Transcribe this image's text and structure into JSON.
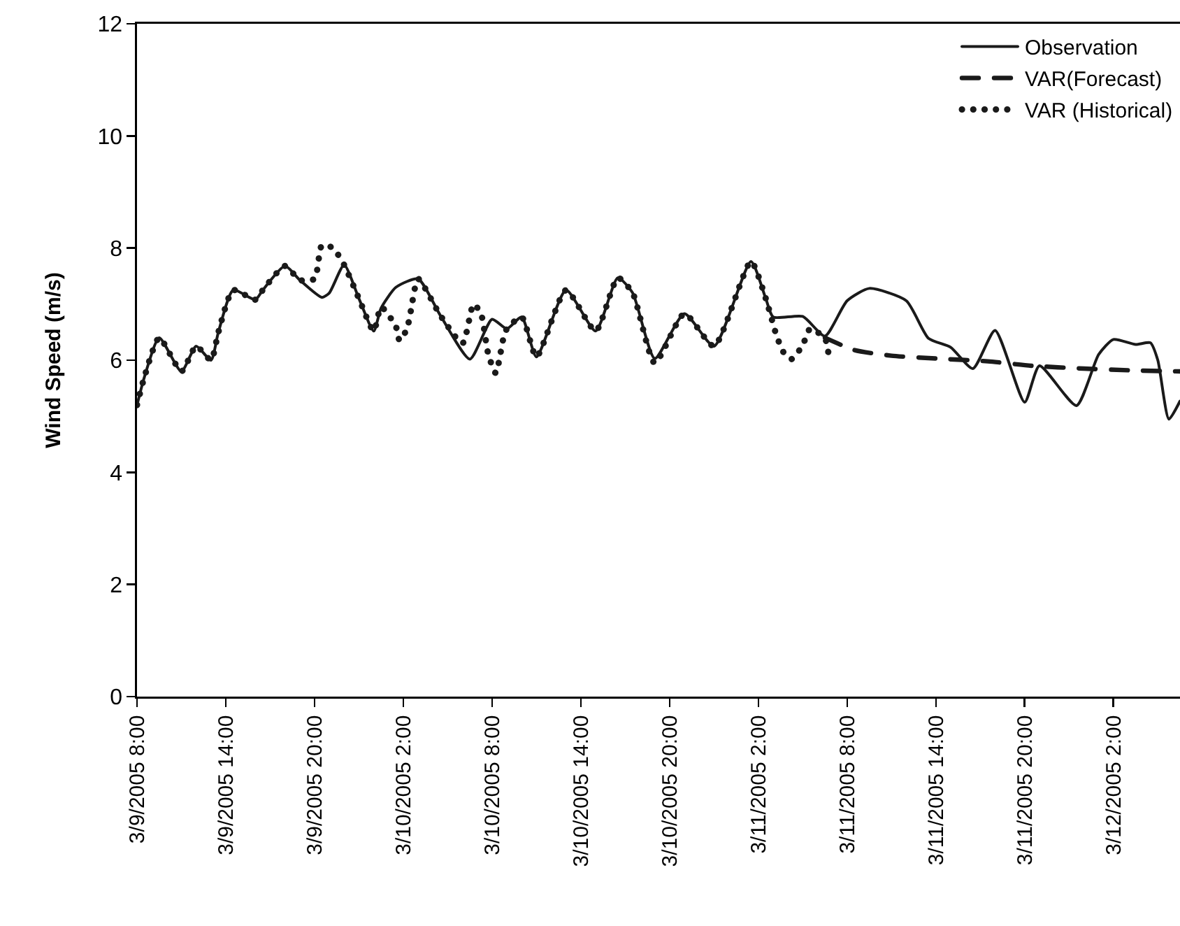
{
  "chart_data": {
    "type": "line",
    "ylabel": "Wind Speed (m/s)",
    "legend": "top right",
    "xlim": [
      "2005-03-09T08:00",
      "2005-03-12T06:30"
    ],
    "xticks": [
      {
        "value": "2005-03-09T08:00",
        "label": "3/9/2005 8:00"
      },
      {
        "value": "2005-03-09T14:00",
        "label": "3/9/2005 14:00"
      },
      {
        "value": "2005-03-09T20:00",
        "label": "3/9/2005 20:00"
      },
      {
        "value": "2005-03-10T02:00",
        "label": "3/10/2005 2:00"
      },
      {
        "value": "2005-03-10T08:00",
        "label": "3/10/2005 8:00"
      },
      {
        "value": "2005-03-10T14:00",
        "label": "3/10/2005 14:00"
      },
      {
        "value": "2005-03-10T20:00",
        "label": "3/10/2005 20:00"
      },
      {
        "value": "2005-03-11T02:00",
        "label": "3/11/2005 2:00"
      },
      {
        "value": "2005-03-11T08:00",
        "label": "3/11/2005 8:00"
      },
      {
        "value": "2005-03-11T14:00",
        "label": "3/11/2005 14:00"
      },
      {
        "value": "2005-03-11T20:00",
        "label": "3/11/2005 20:00"
      },
      {
        "value": "2005-03-12T02:00",
        "label": "3/12/2005 2:00"
      }
    ],
    "ylim": [
      0,
      12
    ],
    "yticks": [
      0,
      2,
      4,
      6,
      8,
      10,
      12
    ],
    "series": [
      {
        "name": "Observation",
        "color": "#1a1a1a",
        "line_style": "solid",
        "x": [
          "2005-03-09T08:00",
          "2005-03-09T08:30",
          "2005-03-09T09:30",
          "2005-03-09T11:00",
          "2005-03-09T12:00",
          "2005-03-09T13:00",
          "2005-03-09T13:30",
          "2005-03-09T14:30",
          "2005-03-09T16:00",
          "2005-03-09T16:30",
          "2005-03-09T18:00",
          "2005-03-09T19:00",
          "2005-03-09T20:30",
          "2005-03-09T21:00",
          "2005-03-09T22:00",
          "2005-03-09T23:00",
          "2005-03-10T00:00",
          "2005-03-10T00:30",
          "2005-03-10T01:30",
          "2005-03-10T03:00",
          "2005-03-10T04:30",
          "2005-03-10T06:30",
          "2005-03-10T08:00",
          "2005-03-10T09:00",
          "2005-03-10T10:00",
          "2005-03-10T11:00",
          "2005-03-10T13:00",
          "2005-03-10T15:00",
          "2005-03-10T16:30",
          "2005-03-10T17:30",
          "2005-03-10T19:00",
          "2005-03-10T21:00",
          "2005-03-10T23:00",
          "2005-03-11T01:30",
          "2005-03-11T02:30",
          "2005-03-11T03:00",
          "2005-03-11T05:00",
          "2005-03-11T06:30",
          "2005-03-11T08:00",
          "2005-03-11T09:30",
          "2005-03-11T12:00",
          "2005-03-11T13:30",
          "2005-03-11T15:00",
          "2005-03-11T16:30",
          "2005-03-11T18:00",
          "2005-03-11T20:00",
          "2005-03-11T21:00",
          "2005-03-11T23:30",
          "2005-03-12T01:00",
          "2005-03-12T02:00",
          "2005-03-12T03:30",
          "2005-03-12T04:30",
          "2005-03-12T05:00",
          "2005-03-12T05:45",
          "2005-03-12T06:30"
        ],
        "values": [
          5.2,
          5.7,
          6.4,
          5.8,
          6.25,
          6.0,
          6.5,
          7.25,
          7.08,
          7.25,
          7.68,
          7.43,
          7.12,
          7.2,
          7.7,
          7.1,
          6.52,
          6.93,
          7.3,
          7.45,
          6.8,
          6.02,
          6.73,
          6.56,
          6.77,
          6.06,
          7.25,
          6.52,
          7.47,
          7.2,
          6.03,
          6.83,
          6.25,
          7.76,
          7.1,
          6.77,
          6.78,
          6.43,
          7.06,
          7.28,
          7.06,
          6.39,
          6.23,
          5.85,
          6.53,
          5.25,
          5.9,
          5.19,
          6.1,
          6.37,
          6.28,
          6.31,
          6.0,
          4.95,
          5.27
        ]
      },
      {
        "name": "VAR(Forecast)",
        "color": "#1a1a1a",
        "line_style": "dashed",
        "x": [
          "2005-03-11T06:30",
          "2005-03-11T08:30",
          "2005-03-11T11:00",
          "2005-03-11T14:00",
          "2005-03-11T17:30",
          "2005-03-11T20:30",
          "2005-03-12T00:00",
          "2005-03-12T03:00",
          "2005-03-12T06:30"
        ],
        "values": [
          6.4,
          6.18,
          6.08,
          6.03,
          5.98,
          5.9,
          5.85,
          5.82,
          5.8
        ]
      },
      {
        "name": "VAR (Historical)",
        "color": "#1a1a1a",
        "line_style": "dotted",
        "x": [
          "2005-03-09T08:00",
          "2005-03-09T08:30",
          "2005-03-09T09:30",
          "2005-03-09T11:00",
          "2005-03-09T12:00",
          "2005-03-09T13:00",
          "2005-03-09T13:30",
          "2005-03-09T14:30",
          "2005-03-09T16:00",
          "2005-03-09T16:30",
          "2005-03-09T18:00",
          "2005-03-09T19:00",
          "2005-03-09T20:00",
          "2005-03-09T20:30",
          "2005-03-09T21:15",
          "2005-03-09T22:00",
          "2005-03-09T23:00",
          "2005-03-10T00:00",
          "2005-03-10T00:30",
          "2005-03-10T01:30",
          "2005-03-10T01:45",
          "2005-03-10T02:15",
          "2005-03-10T02:30",
          "2005-03-10T03:00",
          "2005-03-10T04:30",
          "2005-03-10T06:00",
          "2005-03-10T06:45",
          "2005-03-10T07:15",
          "2005-03-10T07:45",
          "2005-03-10T08:15",
          "2005-03-10T08:45",
          "2005-03-10T09:00",
          "2005-03-10T10:00",
          "2005-03-10T11:00",
          "2005-03-10T13:00",
          "2005-03-10T15:00",
          "2005-03-10T16:30",
          "2005-03-10T17:30",
          "2005-03-10T19:00",
          "2005-03-10T21:00",
          "2005-03-10T23:00",
          "2005-03-11T01:30",
          "2005-03-11T02:30",
          "2005-03-11T03:15",
          "2005-03-11T03:45",
          "2005-03-11T04:15",
          "2005-03-11T05:00",
          "2005-03-11T05:30",
          "2005-03-11T06:30",
          "2005-03-11T06:45"
        ],
        "values": [
          5.2,
          5.7,
          6.4,
          5.8,
          6.25,
          6.0,
          6.5,
          7.25,
          7.08,
          7.25,
          7.68,
          7.43,
          7.45,
          8.05,
          8.0,
          7.7,
          7.1,
          6.52,
          6.95,
          6.6,
          6.35,
          6.56,
          6.87,
          7.45,
          6.8,
          6.3,
          7.0,
          6.83,
          6.1,
          5.77,
          6.37,
          6.56,
          6.77,
          6.06,
          7.25,
          6.52,
          7.47,
          7.2,
          5.95,
          6.83,
          6.25,
          7.76,
          7.1,
          6.42,
          6.12,
          6.02,
          6.27,
          6.56,
          6.39,
          6.1
        ]
      }
    ]
  }
}
